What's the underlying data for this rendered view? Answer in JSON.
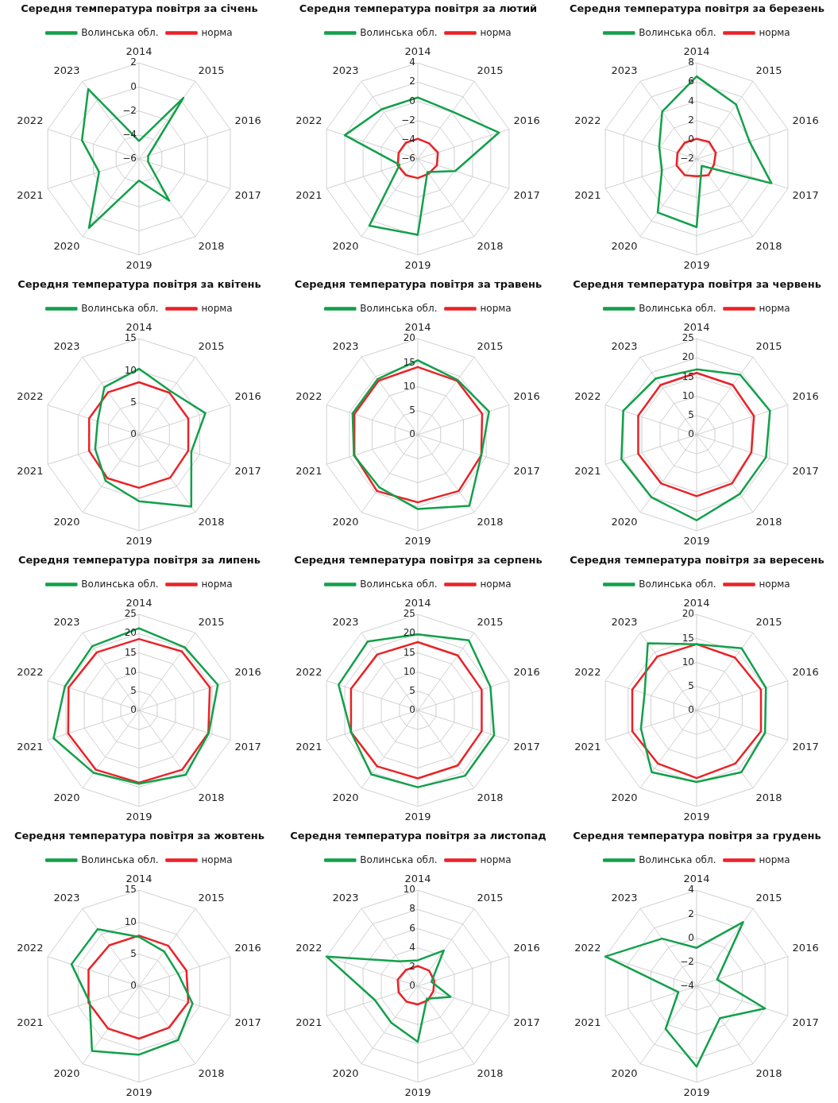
{
  "chart_data": [
    {
      "type": "radar",
      "title": "Середня температура повітря за січень",
      "categories": [
        "2014",
        "2015",
        "2016",
        "2017",
        "2018",
        "2019",
        "2020",
        "2021",
        "2022",
        "2023"
      ],
      "ylim": [
        -6,
        2
      ],
      "yticks": [
        -6,
        -4,
        -2,
        0,
        2
      ],
      "grid": true,
      "legend": "top",
      "marker": "none",
      "series": [
        {
          "name": "Волинська обл.",
          "color": "#12a04a",
          "values": [
            -4.5,
            0.3,
            -5.2,
            -5.2,
            -1.7,
            -4.2,
            1.1,
            -2.5,
            -1.0,
            1.2
          ]
        },
        {
          "name": "норма",
          "color": "#ea2227",
          "values": [
            null,
            null,
            null,
            null,
            null,
            null,
            null,
            null,
            null,
            null
          ]
        }
      ]
    },
    {
      "type": "radar",
      "title": "Середня температура повітря за лютий",
      "categories": [
        "2014",
        "2015",
        "2016",
        "2017",
        "2018",
        "2019",
        "2020",
        "2021",
        "2022",
        "2023"
      ],
      "ylim": [
        -6,
        4
      ],
      "yticks": [
        -6,
        -4,
        -2,
        0,
        2,
        4
      ],
      "grid": true,
      "legend": "top",
      "marker": "none",
      "series": [
        {
          "name": "Волинська обл.",
          "color": "#12a04a",
          "values": [
            0.4,
            0.1,
            2.9,
            -1.9,
            -4.3,
            1.9,
            2.6,
            -4.0,
            2.0,
            0.4
          ]
        },
        {
          "name": "норма",
          "color": "#ea2227",
          "values": [
            -3.9,
            -4.0,
            -3.8,
            -3.9,
            -4.1,
            -4.0,
            -3.9,
            -3.8,
            -3.9,
            -3.9
          ]
        }
      ]
    },
    {
      "type": "radar",
      "title": "Середня температура повітря за березень",
      "categories": [
        "2014",
        "2015",
        "2016",
        "2017",
        "2018",
        "2019",
        "2020",
        "2021",
        "2022",
        "2023"
      ],
      "ylim": [
        -2,
        8
      ],
      "yticks": [
        -2,
        0,
        2,
        4,
        6,
        8
      ],
      "grid": true,
      "legend": "top",
      "marker": "none",
      "series": [
        {
          "name": "Волинська обл.",
          "color": "#12a04a",
          "values": [
            6.6,
            5.0,
            3.8,
            6.2,
            -1.1,
            5.1,
            4.9,
            1.8,
            2.1,
            4.1
          ]
        },
        {
          "name": "норма",
          "color": "#ea2227",
          "values": [
            0.1,
            0.2,
            0.1,
            -0.1,
            0.1,
            -0.2,
            0.1,
            0.2,
            0.1,
            0.1
          ]
        }
      ]
    },
    {
      "type": "radar",
      "title": "Середня температура повітря за квітень",
      "categories": [
        "2014",
        "2015",
        "2016",
        "2017",
        "2018",
        "2019",
        "2020",
        "2021",
        "2022",
        "2023"
      ],
      "ylim": [
        0,
        15
      ],
      "yticks": [
        0,
        5,
        10,
        15
      ],
      "grid": true,
      "legend": "top",
      "marker": "none",
      "series": [
        {
          "name": "Волинська обл.",
          "color": "#12a04a",
          "values": [
            10.3,
            8.4,
            10.9,
            8.6,
            13.9,
            10.4,
            8.9,
            7.2,
            6.8,
            9.2
          ]
        },
        {
          "name": "норма",
          "color": "#ea2227",
          "values": [
            8.2,
            8.1,
            8.1,
            8.1,
            8.3,
            8.3,
            8.4,
            8.2,
            8.2,
            8.2
          ]
        }
      ]
    },
    {
      "type": "radar",
      "title": "Середня температура повітря за травень",
      "categories": [
        "2014",
        "2015",
        "2016",
        "2017",
        "2018",
        "2019",
        "2020",
        "2021",
        "2022",
        "2023"
      ],
      "ylim": [
        0,
        20
      ],
      "yticks": [
        0,
        5,
        10,
        15,
        20
      ],
      "grid": true,
      "legend": "top",
      "marker": "none",
      "series": [
        {
          "name": "Волинська обл.",
          "color": "#12a04a",
          "values": [
            15.5,
            14.1,
            15.6,
            13.9,
            18.3,
            15.5,
            13.6,
            14.0,
            14.3,
            14.3
          ]
        },
        {
          "name": "норма",
          "color": "#ea2227",
          "values": [
            14.1,
            13.9,
            14.1,
            13.9,
            14.5,
            14.1,
            14.5,
            13.9,
            13.9,
            13.9
          ]
        }
      ]
    },
    {
      "type": "radar",
      "title": "Середня температура повітря за червень",
      "categories": [
        "2014",
        "2015",
        "2016",
        "2017",
        "2018",
        "2019",
        "2020",
        "2021",
        "2022",
        "2023"
      ],
      "ylim": [
        0,
        25
      ],
      "yticks": [
        0,
        5,
        10,
        15,
        20,
        25
      ],
      "grid": true,
      "legend": "top",
      "marker": "none",
      "series": [
        {
          "name": "Волинська обл.",
          "color": "#12a04a",
          "values": [
            17.0,
            19.3,
            20.1,
            19.0,
            19.1,
            22.3,
            20.1,
            20.6,
            20.1,
            18.1
          ]
        },
        {
          "name": "норма",
          "color": "#ea2227",
          "values": [
            16.1,
            16.0,
            15.7,
            15.0,
            15.7,
            16.0,
            15.7,
            16.0,
            16.0,
            16.0
          ]
        }
      ]
    },
    {
      "type": "radar",
      "title": "Середня температура повітря за липень",
      "categories": [
        "2014",
        "2015",
        "2016",
        "2017",
        "2018",
        "2019",
        "2020",
        "2021",
        "2022",
        "2023"
      ],
      "ylim": [
        0,
        25
      ],
      "yticks": [
        0,
        5,
        10,
        15,
        20,
        25
      ],
      "grid": true,
      "legend": "top",
      "marker": "none",
      "series": [
        {
          "name": "Волинська обл.",
          "color": "#12a04a",
          "values": [
            21.4,
            20.3,
            21.6,
            19.1,
            20.7,
            19.1,
            20.1,
            23.4,
            20.3,
            20.7
          ]
        },
        {
          "name": "норма",
          "color": "#ea2227",
          "values": [
            18.6,
            19.0,
            19.4,
            19.0,
            19.1,
            18.8,
            19.1,
            19.4,
            19.3,
            18.7
          ]
        }
      ]
    },
    {
      "type": "radar",
      "title": "Середня температура повітря за серпень",
      "categories": [
        "2014",
        "2015",
        "2016",
        "2017",
        "2018",
        "2019",
        "2020",
        "2021",
        "2022",
        "2023"
      ],
      "ylim": [
        0,
        25
      ],
      "yticks": [
        0,
        5,
        10,
        15,
        20,
        25
      ],
      "grid": true,
      "legend": "top",
      "marker": "none",
      "series": [
        {
          "name": "Волинська обл.",
          "color": "#12a04a",
          "values": [
            19.8,
            22.6,
            19.9,
            20.9,
            21.0,
            20.0,
            20.6,
            18.3,
            21.7,
            22.2
          ]
        },
        {
          "name": "норма",
          "color": "#ea2227",
          "values": [
            17.8,
            17.7,
            17.5,
            17.5,
            17.7,
            17.7,
            18.0,
            18.3,
            18.3,
            18.0
          ]
        }
      ]
    },
    {
      "type": "radar",
      "title": "Середня температура повітря за вересень",
      "categories": [
        "2014",
        "2015",
        "2016",
        "2017",
        "2018",
        "2019",
        "2020",
        "2021",
        "2022",
        "2023"
      ],
      "ylim": [
        0,
        20
      ],
      "yticks": [
        0,
        5,
        10,
        15,
        20
      ],
      "grid": true,
      "legend": "top",
      "marker": "none",
      "series": [
        {
          "name": "Волинська обл.",
          "color": "#12a04a",
          "values": [
            13.8,
            16.0,
            15.2,
            15.0,
            15.9,
            14.9,
            15.9,
            12.2,
            11.4,
            17.3
          ]
        },
        {
          "name": "норма",
          "color": "#ea2227",
          "values": [
            13.8,
            13.6,
            14.1,
            14.1,
            13.7,
            14.1,
            13.7,
            14.1,
            14.1,
            13.9
          ]
        }
      ]
    },
    {
      "type": "radar",
      "title": "Середня температура повітря за жовтень",
      "categories": [
        "2014",
        "2015",
        "2016",
        "2017",
        "2018",
        "2019",
        "2020",
        "2021",
        "2022",
        "2023"
      ],
      "ylim": [
        0,
        15
      ],
      "yticks": [
        0,
        5,
        10,
        15
      ],
      "grid": true,
      "legend": "top",
      "marker": "none",
      "series": [
        {
          "name": "Волинська обл.",
          "color": "#12a04a",
          "values": [
            7.7,
            6.7,
            6.4,
            8.8,
            10.4,
            10.7,
            12.5,
            8.1,
            11.1,
            11.0
          ]
        },
        {
          "name": "норма",
          "color": "#ea2227",
          "values": [
            7.9,
            7.8,
            7.8,
            8.1,
            8.0,
            8.2,
            8.2,
            8.3,
            8.3,
            7.9
          ]
        }
      ]
    },
    {
      "type": "radar",
      "title": "Середня температура повітря за листопад",
      "categories": [
        "2014",
        "2015",
        "2016",
        "2017",
        "2018",
        "2019",
        "2020",
        "2021",
        "2022",
        "2023"
      ],
      "ylim": [
        0,
        10
      ],
      "yticks": [
        0,
        2,
        4,
        6,
        8,
        10
      ],
      "grid": true,
      "legend": "top",
      "marker": "none",
      "series": [
        {
          "name": "Волинська обл.",
          "color": "#12a04a",
          "values": [
            2.7,
            4.6,
            1.5,
            3.6,
            1.6,
            5.8,
            4.7,
            4.7,
            10.0,
            3.2
          ]
        },
        {
          "name": "норма",
          "color": "#ea2227",
          "values": [
            2.1,
            2.0,
            1.8,
            1.7,
            1.8,
            1.9,
            2.0,
            2.1,
            2.2,
            2.1
          ]
        }
      ]
    },
    {
      "type": "radar",
      "title": "Середня температура повітря за грудень",
      "categories": [
        "2014",
        "2015",
        "2016",
        "2017",
        "2018",
        "2019",
        "2020",
        "2021",
        "2022",
        "2023"
      ],
      "ylim": [
        -4,
        4
      ],
      "yticks": [
        -4,
        -2,
        0,
        2,
        4
      ],
      "grid": true,
      "legend": "top",
      "marker": "none",
      "series": [
        {
          "name": "Волинська обл.",
          "color": "#12a04a",
          "values": [
            -0.8,
            2.6,
            -2.2,
            2.0,
            -0.7,
            2.7,
            0.4,
            -2.4,
            4.0,
            0.9
          ]
        },
        {
          "name": "норма",
          "color": "#ea2227",
          "values": [
            null,
            null,
            null,
            null,
            null,
            null,
            null,
            null,
            null,
            null
          ]
        }
      ]
    }
  ]
}
